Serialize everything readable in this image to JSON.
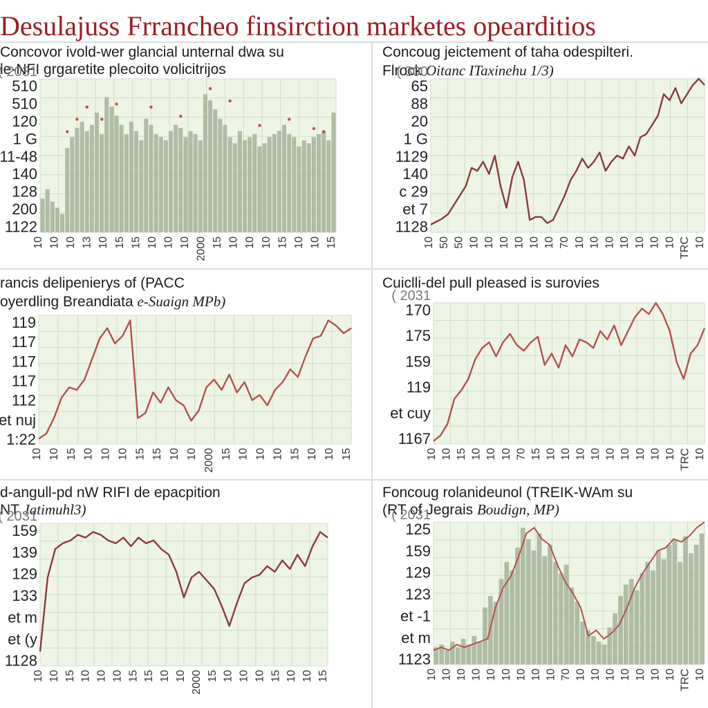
{
  "page": {
    "title": "Desulajuss Frrancheo finsirction marketes opearditios"
  },
  "colors": {
    "title": "#9c1f24",
    "line": "#8b3a3a",
    "line_light": "#b5504a",
    "bar_fill": "#a9b79c",
    "plot_bg": "#eef5e6",
    "grid": "#cfe0c2",
    "marker": "#d24a3c"
  },
  "chart_data": [
    {
      "id": "p1",
      "type": "bar",
      "title": "Concovor ivold-wer glancial unternal dwa su",
      "subtitle": "le-NFI grgaretite plecoito volicitrijos",
      "subtitle_italic": "",
      "ylabel_top": "2031",
      "yticks": [
        "510",
        "510",
        "120",
        "1 G",
        "11-48",
        "140",
        "128",
        "200",
        "1122"
      ],
      "xticks": [
        "10",
        "10",
        "10",
        "13",
        "10",
        "15",
        "15",
        "10",
        "10",
        "10",
        "2000",
        "15",
        "10",
        "10",
        "10",
        "15",
        "10",
        "10",
        "15"
      ],
      "ylim": [
        0,
        100
      ],
      "values": [
        22,
        28,
        20,
        16,
        12,
        55,
        62,
        68,
        72,
        66,
        70,
        78,
        64,
        88,
        82,
        76,
        70,
        64,
        72,
        66,
        60,
        74,
        70,
        64,
        62,
        60,
        66,
        70,
        68,
        62,
        66,
        64,
        60,
        90,
        86,
        80,
        74,
        70,
        62,
        58,
        66,
        60,
        62,
        64,
        56,
        58,
        62,
        64,
        66,
        70,
        64,
        62,
        56,
        60,
        58,
        62,
        64,
        66,
        60,
        78
      ],
      "markers": [
        [
          5,
          62
        ],
        [
          7,
          70
        ],
        [
          9,
          78
        ],
        [
          12,
          70
        ],
        [
          15,
          80
        ],
        [
          22,
          78
        ],
        [
          28,
          72
        ],
        [
          34,
          90
        ],
        [
          38,
          82
        ],
        [
          44,
          66
        ],
        [
          50,
          70
        ],
        [
          55,
          64
        ],
        [
          57,
          62
        ]
      ]
    },
    {
      "id": "p2",
      "type": "line",
      "title": "Concoug jeictement of taha odespilteri.",
      "subtitle": "Flrock",
      "subtitle_italic": "Oitanc ITaxinehu 1/3)",
      "ylabel_top": "300",
      "yticks": [
        "65",
        "88",
        "20",
        "1 G",
        "1129",
        "140",
        "c 29",
        "et 7",
        "1128"
      ],
      "xticks": [
        "10",
        "50",
        "50",
        "10",
        "10",
        "10",
        "10",
        "10",
        "10",
        "70",
        "10",
        "10",
        "10",
        "10",
        "10",
        "10",
        "10",
        "TRC",
        "10"
      ],
      "ylim": [
        0,
        100
      ],
      "values": [
        5,
        7,
        9,
        12,
        18,
        24,
        30,
        42,
        40,
        46,
        38,
        50,
        30,
        16,
        36,
        46,
        34,
        8,
        10,
        10,
        6,
        8,
        16,
        24,
        34,
        40,
        48,
        42,
        46,
        52,
        40,
        46,
        50,
        48,
        56,
        50,
        62,
        64,
        70,
        76,
        90,
        86,
        94,
        84,
        90,
        96,
        100,
        96
      ]
    },
    {
      "id": "p3",
      "type": "line",
      "title": "rancis delipenierys of (PACC",
      "subtitle": "oyerdling Breandiata",
      "subtitle_italic": "e-Suaign MPb)",
      "ylabel_top": "",
      "yticks": [
        "119",
        "117",
        "117",
        "117",
        "112",
        "et nuj",
        "1:22"
      ],
      "xticks": [
        "10",
        "10",
        "15",
        "10",
        "10",
        "10",
        "15",
        "15",
        "10",
        "10",
        "2000",
        "15",
        "10",
        "10",
        "10",
        "15",
        "10",
        "10",
        "15"
      ],
      "ylim": [
        0,
        100
      ],
      "values": [
        4,
        8,
        20,
        36,
        44,
        42,
        50,
        66,
        82,
        90,
        78,
        84,
        96,
        20,
        24,
        40,
        32,
        44,
        34,
        30,
        18,
        26,
        44,
        50,
        42,
        54,
        40,
        48,
        34,
        38,
        30,
        42,
        48,
        58,
        52,
        68,
        82,
        84,
        96,
        92,
        86,
        90
      ]
    },
    {
      "id": "p4",
      "type": "line",
      "title": "Cuiclli-del pull pleased is surovies",
      "subtitle": "",
      "subtitle_italic": "",
      "ylabel_top": "2031",
      "yticks": [
        "170",
        "175",
        "159",
        "119",
        "et cuy",
        "1167"
      ],
      "xticks": [
        "10",
        "10",
        "15",
        "10",
        "10",
        "10",
        "70",
        "15",
        "10",
        "10",
        "10",
        "10",
        "10",
        "10",
        "10",
        "10",
        "10",
        "TRC",
        "10"
      ],
      "ylim": [
        0,
        100
      ],
      "values": [
        2,
        6,
        14,
        32,
        38,
        46,
        60,
        68,
        72,
        62,
        72,
        78,
        70,
        66,
        72,
        76,
        56,
        64,
        54,
        70,
        62,
        74,
        72,
        68,
        80,
        74,
        84,
        70,
        80,
        90,
        96,
        92,
        100,
        92,
        80,
        58,
        46,
        64,
        70,
        82
      ]
    },
    {
      "id": "p5",
      "type": "line",
      "title": "d-angull-pd nW RIFI de epacpition",
      "subtitle": "NT",
      "subtitle_italic": "Jatimuhl3)",
      "ylabel_top": "2031",
      "yticks": [
        "159",
        "139",
        "129",
        "133",
        "et m",
        "et (y",
        "1128"
      ],
      "xticks": [
        "10",
        "10",
        "15",
        "10",
        "10",
        "10",
        "15",
        "15",
        "10",
        "10",
        "2000",
        "15",
        "10",
        "10",
        "10",
        "15",
        "10",
        "10",
        "15"
      ],
      "ylim": [
        0,
        100
      ],
      "values": [
        10,
        62,
        82,
        86,
        88,
        92,
        90,
        94,
        92,
        88,
        86,
        90,
        84,
        90,
        86,
        88,
        82,
        78,
        66,
        48,
        62,
        66,
        60,
        54,
        42,
        28,
        44,
        58,
        62,
        64,
        70,
        66,
        74,
        68,
        78,
        70,
        84,
        94,
        90
      ]
    },
    {
      "id": "p6",
      "type": "bar",
      "title": "Foncoug rolanideunol (TREIK-WAm su",
      "subtitle": "(RT of Jegrais",
      "subtitle_italic": "Boudign, MP)",
      "ylabel_top": "2031",
      "yticks": [
        "125",
        "159",
        "129",
        "123",
        "et -1",
        "et m",
        "1123"
      ],
      "xticks": [
        "10",
        "10",
        "10",
        "10",
        "10",
        "10",
        "10",
        "10",
        "10",
        "70",
        "10",
        "10",
        "10",
        "10",
        "10",
        "10",
        "10",
        "TRC",
        "10"
      ],
      "ylim": [
        0,
        100
      ],
      "values": [
        12,
        14,
        10,
        16,
        12,
        18,
        14,
        20,
        16,
        40,
        48,
        44,
        60,
        72,
        66,
        82,
        96,
        88,
        80,
        92,
        76,
        84,
        72,
        64,
        70,
        54,
        44,
        30,
        24,
        20,
        16,
        14,
        26,
        36,
        48,
        56,
        60,
        52,
        64,
        72,
        66,
        80,
        74,
        84,
        88,
        72,
        90,
        78,
        84,
        92
      ],
      "overlay": [
        10,
        12,
        10,
        14,
        12,
        14,
        16,
        18,
        40,
        54,
        62,
        76,
        92,
        96,
        88,
        84,
        70,
        58,
        50,
        40,
        20,
        24,
        18,
        22,
        28,
        40,
        54,
        64,
        72,
        80,
        82,
        88,
        86,
        90,
        96,
        100
      ]
    }
  ]
}
